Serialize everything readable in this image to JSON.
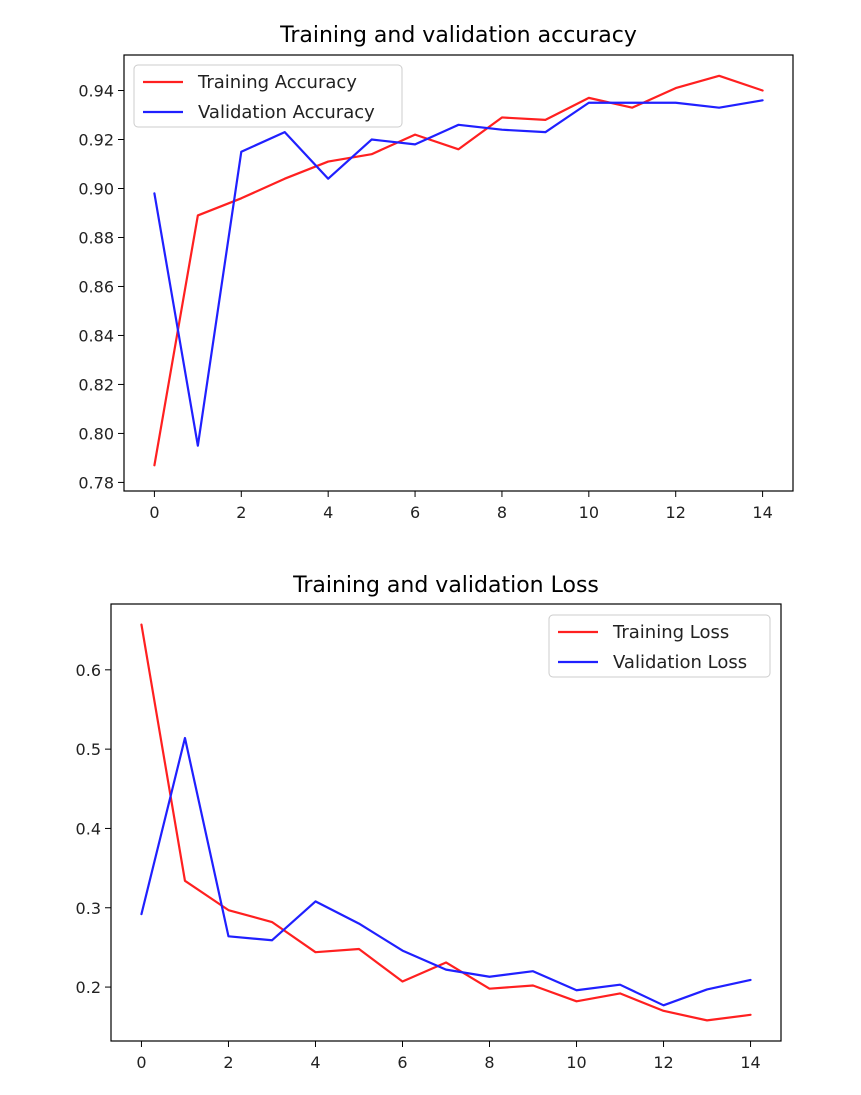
{
  "chart_data": [
    {
      "type": "line",
      "title": "Training and validation accuracy",
      "xlabel": "",
      "ylabel": "",
      "x": [
        0,
        1,
        2,
        3,
        4,
        5,
        6,
        7,
        8,
        9,
        10,
        11,
        12,
        13,
        14
      ],
      "xticks": [
        0,
        2,
        4,
        6,
        8,
        10,
        12,
        14
      ],
      "xlim": [
        -0.7,
        14.7
      ],
      "yticks": [
        0.78,
        0.8,
        0.82,
        0.84,
        0.86,
        0.88,
        0.9,
        0.92,
        0.94
      ],
      "ytick_labels": [
        "0.78",
        "0.80",
        "0.82",
        "0.84",
        "0.86",
        "0.88",
        "0.90",
        "0.92",
        "0.94"
      ],
      "ylim": [
        0.7765,
        0.9545
      ],
      "grid": false,
      "legend_position": "top-left",
      "series": [
        {
          "name": "Training Accuracy",
          "color": "#ff2020",
          "values": [
            0.787,
            0.889,
            0.896,
            0.904,
            0.911,
            0.914,
            0.922,
            0.916,
            0.929,
            0.928,
            0.937,
            0.933,
            0.941,
            0.946,
            0.94
          ]
        },
        {
          "name": "Validation Accuracy",
          "color": "#2020ff",
          "values": [
            0.898,
            0.795,
            0.915,
            0.923,
            0.904,
            0.92,
            0.918,
            0.926,
            0.924,
            0.923,
            0.935,
            0.935,
            0.935,
            0.933,
            0.936
          ]
        }
      ]
    },
    {
      "type": "line",
      "title": "Training and validation Loss",
      "xlabel": "",
      "ylabel": "",
      "x": [
        0,
        1,
        2,
        3,
        4,
        5,
        6,
        7,
        8,
        9,
        10,
        11,
        12,
        13,
        14
      ],
      "xticks": [
        0,
        2,
        4,
        6,
        8,
        10,
        12,
        14
      ],
      "xlim": [
        -0.7,
        14.7
      ],
      "yticks": [
        0.2,
        0.3,
        0.4,
        0.5,
        0.6
      ],
      "ytick_labels": [
        "0.2",
        "0.3",
        "0.4",
        "0.5",
        "0.6"
      ],
      "ylim": [
        0.132,
        0.683
      ],
      "grid": false,
      "legend_position": "top-right",
      "series": [
        {
          "name": "Training Loss",
          "color": "#ff2020",
          "values": [
            0.657,
            0.334,
            0.297,
            0.282,
            0.244,
            0.248,
            0.207,
            0.231,
            0.198,
            0.202,
            0.182,
            0.192,
            0.17,
            0.158,
            0.165
          ]
        },
        {
          "name": "Validation Loss",
          "color": "#2020ff",
          "values": [
            0.292,
            0.514,
            0.264,
            0.259,
            0.308,
            0.28,
            0.246,
            0.222,
            0.213,
            0.22,
            0.196,
            0.203,
            0.177,
            0.197,
            0.209
          ]
        }
      ]
    }
  ]
}
